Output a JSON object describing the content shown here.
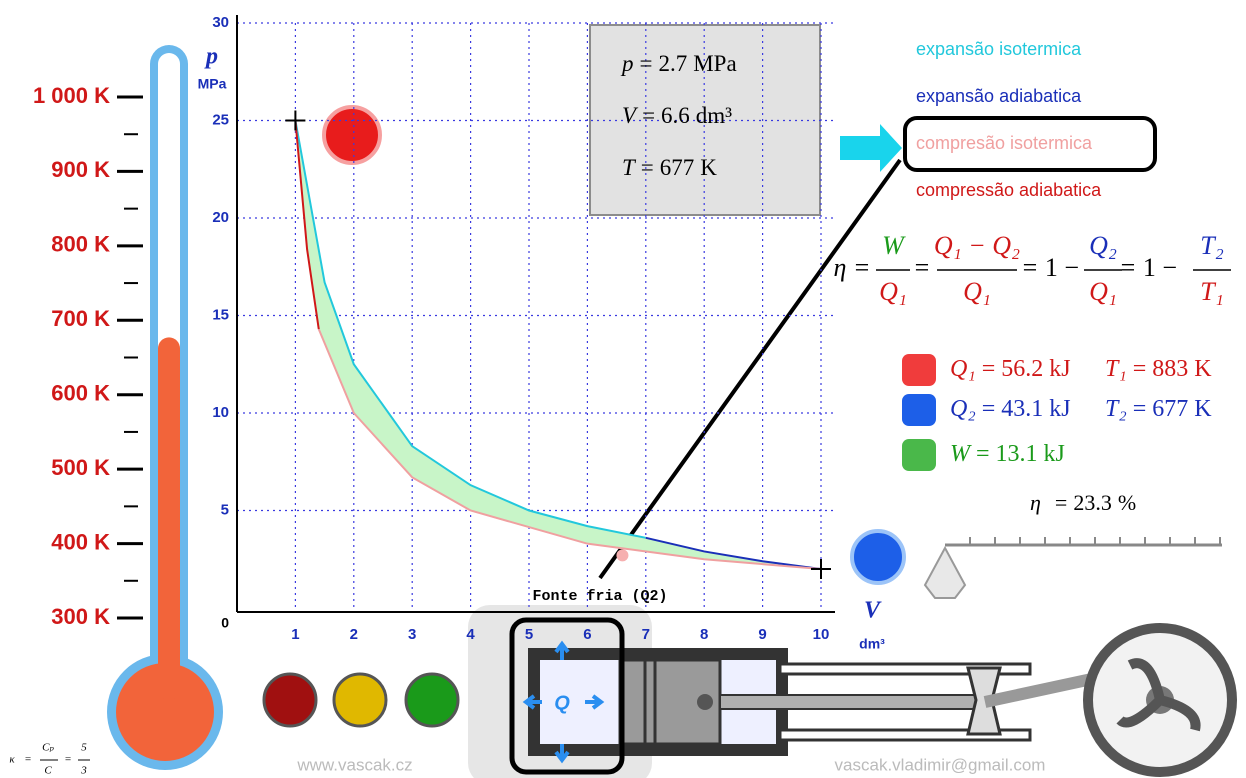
{
  "chart_data": {
    "type": "line",
    "y_label": "p",
    "y_unit": "MPa",
    "x_label": "V",
    "x_unit": "dm³",
    "xlim": [
      0,
      10
    ],
    "ylim": [
      0,
      30
    ],
    "xticks": [
      1,
      2,
      3,
      4,
      5,
      6,
      7,
      8,
      9,
      10
    ],
    "yticks": [
      5,
      10,
      15,
      20,
      25,
      30
    ],
    "origin_label": "0",
    "grid": true,
    "fill_color": "#c8f5c8",
    "series": [
      {
        "name": "expansão isotermica",
        "color": "#22c8dc",
        "x": [
          1,
          1.5,
          2,
          3,
          4,
          5,
          6,
          7
        ],
        "values": [
          25,
          16.7,
          12.5,
          8.3,
          6.3,
          5,
          4.2,
          3.6
        ]
      },
      {
        "name": "expansão adiabatica",
        "color": "#1a2fb8",
        "x": [
          7,
          8,
          9,
          10
        ],
        "values": [
          3.6,
          2.9,
          2.4,
          2.0
        ]
      },
      {
        "name": "compresão isotermica",
        "color": "#f0a0a0",
        "x": [
          10,
          8,
          6,
          4,
          3,
          2,
          1.4
        ],
        "values": [
          2.0,
          2.5,
          3.3,
          5,
          6.7,
          10,
          14.3
        ]
      },
      {
        "name": "compressão adiabatica",
        "color": "#d01818",
        "x": [
          1.4,
          1.2,
          1
        ],
        "values": [
          14.3,
          18.4,
          25
        ]
      }
    ]
  },
  "readout": {
    "p": {
      "symbol": "p",
      "value": 2.7,
      "unit": "MPa"
    },
    "V": {
      "symbol": "V",
      "value": 6.6,
      "unit": "dm³"
    },
    "T": {
      "symbol": "T",
      "value": 677,
      "unit": "K"
    }
  },
  "thermometer": {
    "ticks": [
      {
        "value": 1000,
        "label": "1 000 K"
      },
      {
        "value": 900,
        "label": "900 K"
      },
      {
        "value": 800,
        "label": "800 K"
      },
      {
        "value": 700,
        "label": "700 K"
      },
      {
        "value": 600,
        "label": "600 K"
      },
      {
        "value": 500,
        "label": "500 K"
      },
      {
        "value": 400,
        "label": "400 K"
      },
      {
        "value": 300,
        "label": "300 K"
      }
    ]
  },
  "formula": {
    "lhs": "η",
    "eq": "=",
    "one_minus": "1 −",
    "terms": [
      {
        "num": "W",
        "den": "Q₁"
      },
      {
        "num": "Q₁ − Q₂",
        "den": "Q₁"
      },
      {
        "num": "Q₂",
        "den": "Q₁"
      },
      {
        "num": "T₂",
        "den": "T₁"
      }
    ]
  },
  "results": {
    "Q1": {
      "symbol": "Q₁",
      "value": "56.2",
      "unit": "kJ"
    },
    "T1": {
      "symbol": "T₁",
      "value": "883",
      "unit": "K"
    },
    "Q2": {
      "symbol": "Q₂",
      "value": "43.1",
      "unit": "kJ"
    },
    "T2": {
      "symbol": "T₂",
      "value": "677",
      "unit": "K"
    },
    "W": {
      "symbol": "W",
      "value": "13.1",
      "unit": "kJ"
    },
    "eta": {
      "symbol": "η",
      "value": "23.3",
      "unit": "%"
    }
  },
  "engine": {
    "caption": "Fonte fria (Q2)",
    "heat": "Q"
  },
  "footer": {
    "site": "www.vascak.cz",
    "email": "vascak.vladimir@gmail.com"
  },
  "kappa": {
    "symbol": "κ",
    "eq": "=",
    "num": "Cₚ",
    "den": "C",
    "value_num": "5",
    "value_den": "3"
  }
}
